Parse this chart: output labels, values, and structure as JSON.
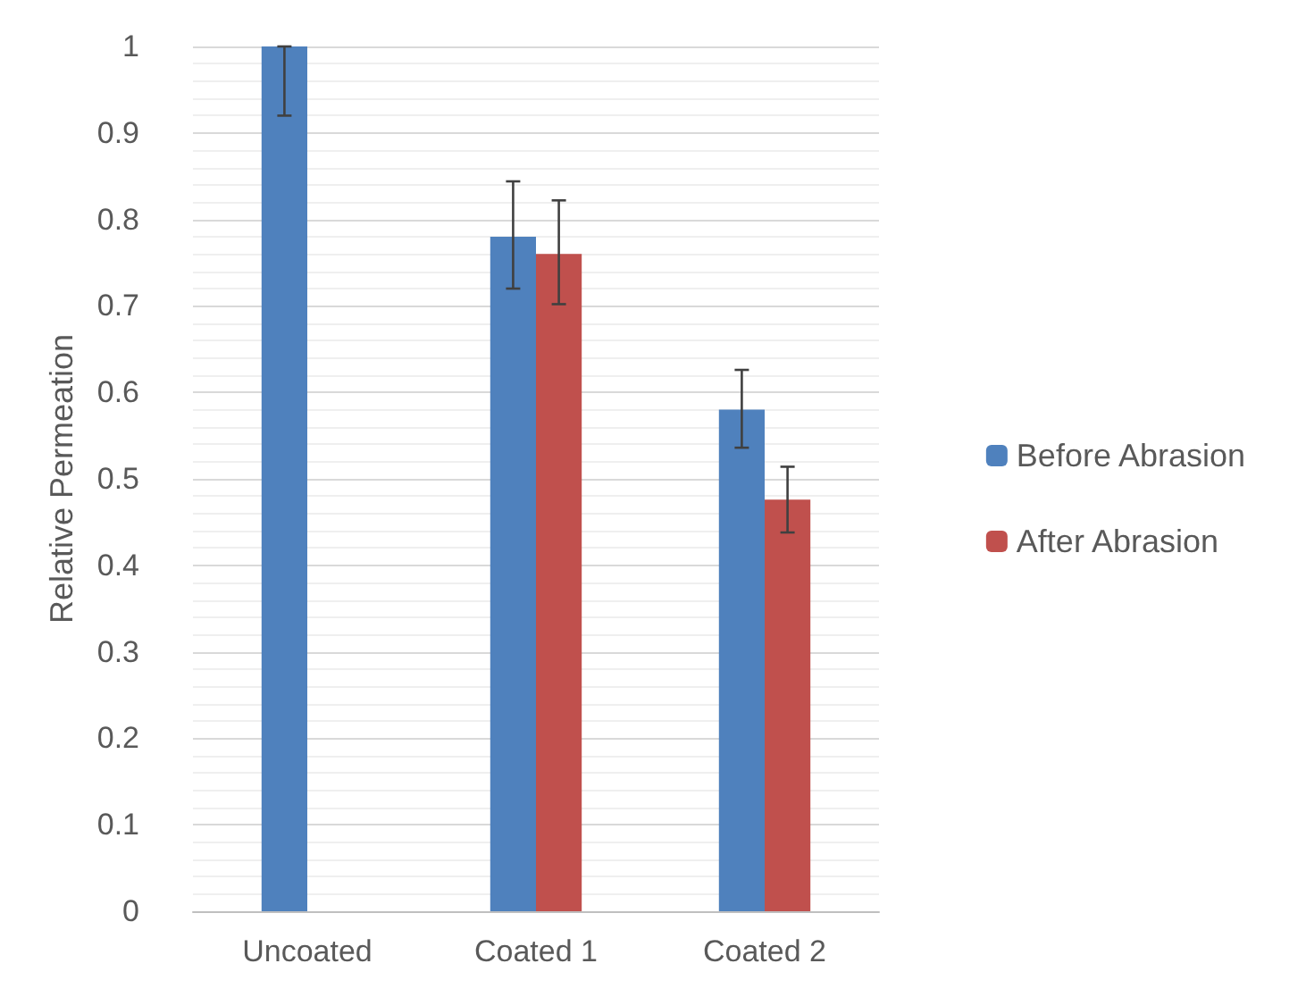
{
  "chart_data": {
    "type": "bar",
    "ylabel": "Relative Permeation",
    "categories": [
      "Uncoated",
      "Coated 1",
      "Coated 2"
    ],
    "series": [
      {
        "name": "Before Abrasion",
        "color": "#4f81bd",
        "values": [
          1.0,
          0.78,
          0.58
        ],
        "errors": [
          [
            0.92,
            1.0
          ],
          [
            0.72,
            0.844
          ],
          [
            0.536,
            0.626
          ]
        ]
      },
      {
        "name": "After Abrasion",
        "color": "#c0504d",
        "values": [
          null,
          0.76,
          0.476
        ],
        "errors": [
          null,
          [
            0.702,
            0.822
          ],
          [
            0.438,
            0.514
          ]
        ]
      }
    ],
    "ylim": [
      0,
      1
    ],
    "yticks": [
      0,
      0.1,
      0.2,
      0.3,
      0.4,
      0.5,
      0.6,
      0.7,
      0.8,
      0.9,
      1
    ],
    "grid": "y",
    "legend": "right"
  }
}
